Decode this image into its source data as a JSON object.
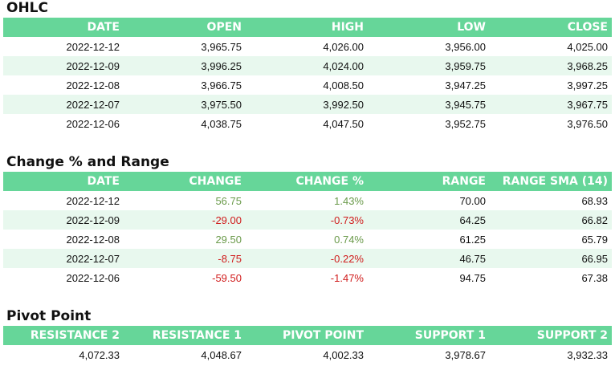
{
  "ohlc": {
    "title": "OHLC",
    "headers": [
      "DATE",
      "OPEN",
      "HIGH",
      "LOW",
      "CLOSE"
    ],
    "rows": [
      [
        "2022-12-12",
        "3,965.75",
        "4,026.00",
        "3,956.00",
        "4,025.00"
      ],
      [
        "2022-12-09",
        "3,996.25",
        "4,024.00",
        "3,959.75",
        "3,968.25"
      ],
      [
        "2022-12-08",
        "3,966.75",
        "4,008.50",
        "3,947.25",
        "3,997.25"
      ],
      [
        "2022-12-07",
        "3,975.50",
        "3,992.50",
        "3,945.75",
        "3,967.75"
      ],
      [
        "2022-12-06",
        "4,038.75",
        "4,047.50",
        "3,952.75",
        "3,976.50"
      ]
    ]
  },
  "change": {
    "title": "Change % and Range",
    "headers": [
      "DATE",
      "CHANGE",
      "CHANGE %",
      "RANGE",
      "RANGE SMA (14)"
    ],
    "rows": [
      [
        "2022-12-12",
        "56.75",
        "1.43%",
        "70.00",
        "68.93"
      ],
      [
        "2022-12-09",
        "-29.00",
        "-0.73%",
        "64.25",
        "66.82"
      ],
      [
        "2022-12-08",
        "29.50",
        "0.74%",
        "61.25",
        "65.79"
      ],
      [
        "2022-12-07",
        "-8.75",
        "-0.22%",
        "46.75",
        "66.95"
      ],
      [
        "2022-12-06",
        "-59.50",
        "-1.47%",
        "94.75",
        "67.38"
      ]
    ]
  },
  "pivot": {
    "title": "Pivot Point",
    "headers": [
      "RESISTANCE 2",
      "RESISTANCE 1",
      "PIVOT POINT",
      "SUPPORT 1",
      "SUPPORT 2"
    ],
    "rows": [
      [
        "4,072.33",
        "4,048.67",
        "4,002.33",
        "3,978.67",
        "3,932.33"
      ]
    ]
  },
  "colors": {
    "header_bg": "#66d699",
    "stripe_bg": "#e8f8ee",
    "positive": "#6a9a4a",
    "negative": "#d01b1b"
  }
}
